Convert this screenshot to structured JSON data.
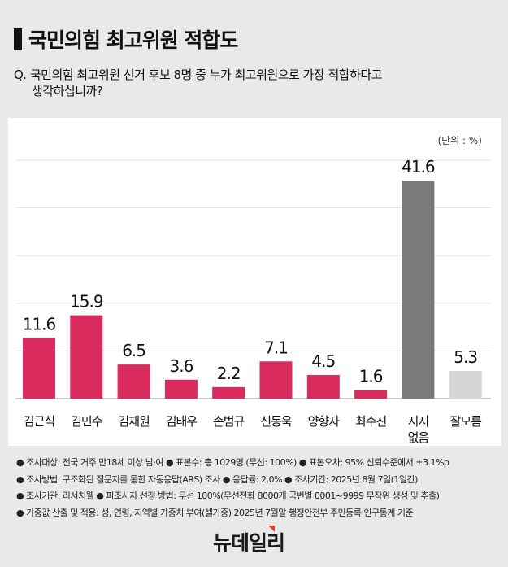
{
  "header": {
    "title": "국민의힘 최고위원 적합도",
    "question_line1": "Q. 국민의힘 최고위원 선거 후보 8명 중 누가 최고위원으로 가장 적합하다고",
    "question_line2": "생각하십니까?"
  },
  "chart_data": {
    "type": "bar",
    "unit_label": "(단위 : %)",
    "categories": [
      "김근식",
      "김민수",
      "김재원",
      "김태우",
      "손범규",
      "신동욱",
      "양향자",
      "최수진",
      "지지\n없음",
      "잘모름"
    ],
    "values": [
      11.6,
      15.9,
      6.5,
      3.6,
      2.2,
      7.1,
      4.5,
      1.6,
      41.6,
      5.3
    ],
    "value_labels": [
      "11.6",
      "15.9",
      "6.5",
      "3.6",
      "2.2",
      "7.1",
      "4.5",
      "1.6",
      "41.6",
      "5.3"
    ],
    "colors": [
      "#d92b5e",
      "#d92b5e",
      "#d92b5e",
      "#d92b5e",
      "#d92b5e",
      "#d92b5e",
      "#d92b5e",
      "#d92b5e",
      "#7a7a7a",
      "#d6d6d6"
    ],
    "grid": true
  },
  "notes": [
    "● 조사대상: 전국 거주 만18세 이상 남·여 ● 표본수: 총 1029명 (무선: 100%) ● 표본오차: 95% 신뢰수준에서 ±3.1%p",
    "● 조사방법: 구조화된 질문지를 통한 자동응답(ARS) 조사 ● 응답률: 2.0% ● 조사기간: 2025년 8월 7일(1일간)",
    "● 조사기관: 리서치웰 ● 피조사자 선정 방법: 무선 100%(무선전화 8000개 국번별 0001~9999 무작위 생성 및 추출)",
    "● 가중값 산출 및 적용: 성, 연령, 지역별 가중치 부여(셀가중) 2025년 7월말 행정안전부 주민등록 인구통계 기준"
  ],
  "logo": "뉴데일리"
}
